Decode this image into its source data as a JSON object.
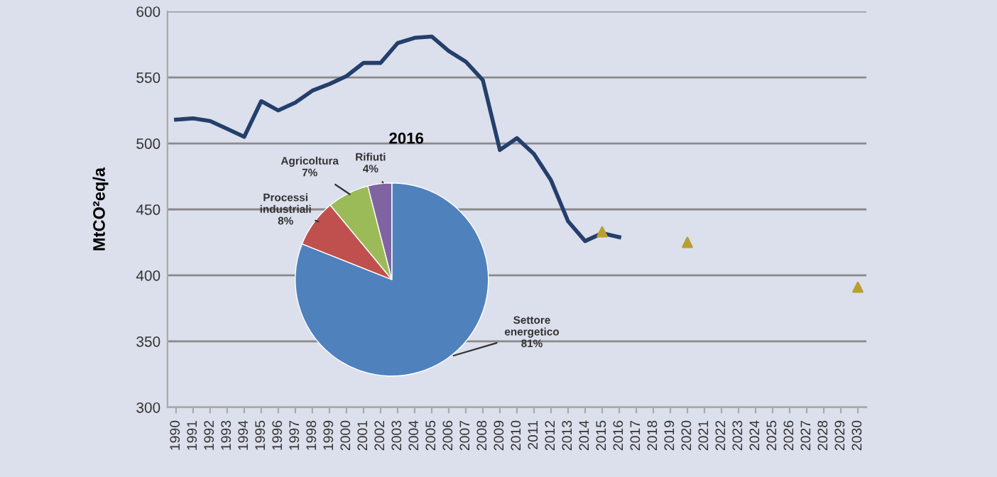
{
  "chart_data": [
    {
      "type": "line",
      "ylabel": "MtCO²eq/a",
      "categories": [
        "1990",
        "1991",
        "1992",
        "1993",
        "1994",
        "1995",
        "1996",
        "1997",
        "1998",
        "1999",
        "2000",
        "2001",
        "2002",
        "2003",
        "2004",
        "2005",
        "2006",
        "2007",
        "2008",
        "2009",
        "2010",
        "2011",
        "2012",
        "2013",
        "2014",
        "2015",
        "2016",
        "2017",
        "2018",
        "2019",
        "2020",
        "2021",
        "2022",
        "2023",
        "2024",
        "2025",
        "2026",
        "2027",
        "2028",
        "2029",
        "2030"
      ],
      "series": [
        {
          "type": "line",
          "color": "#243f6b",
          "marker": "none",
          "values": [
            518,
            519,
            517,
            511,
            505,
            532,
            525,
            531,
            540,
            545,
            551,
            561,
            561,
            576,
            580,
            581,
            570,
            562,
            548,
            495,
            504,
            492,
            472,
            441,
            426,
            432,
            429,
            null,
            null,
            null,
            null,
            null,
            null,
            null,
            null,
            null,
            null,
            null,
            null,
            null,
            null
          ]
        },
        {
          "type": "scatter",
          "color": "#b8a030",
          "marker": "triangle",
          "values": [
            null,
            null,
            null,
            null,
            null,
            null,
            null,
            null,
            null,
            null,
            null,
            null,
            null,
            null,
            null,
            null,
            null,
            null,
            null,
            null,
            null,
            null,
            null,
            null,
            null,
            433,
            null,
            null,
            null,
            null,
            425,
            null,
            null,
            null,
            null,
            null,
            null,
            null,
            null,
            null,
            391
          ]
        }
      ],
      "ylim": [
        300,
        600
      ],
      "yticks": [
        300,
        350,
        400,
        450,
        500,
        550,
        600
      ],
      "grid": "y",
      "legend": false
    },
    {
      "type": "pie",
      "title": "2016",
      "categories": [
        "Settore energetico",
        "Processi industriali",
        "Agricoltura",
        "Rifiuti"
      ],
      "values": [
        81,
        8,
        7,
        4
      ],
      "value_labels": [
        "81%",
        "8%",
        "7%",
        "4%"
      ],
      "colors": [
        "#4f81bd",
        "#c0504d",
        "#9bbb59",
        "#8064a2"
      ]
    }
  ]
}
